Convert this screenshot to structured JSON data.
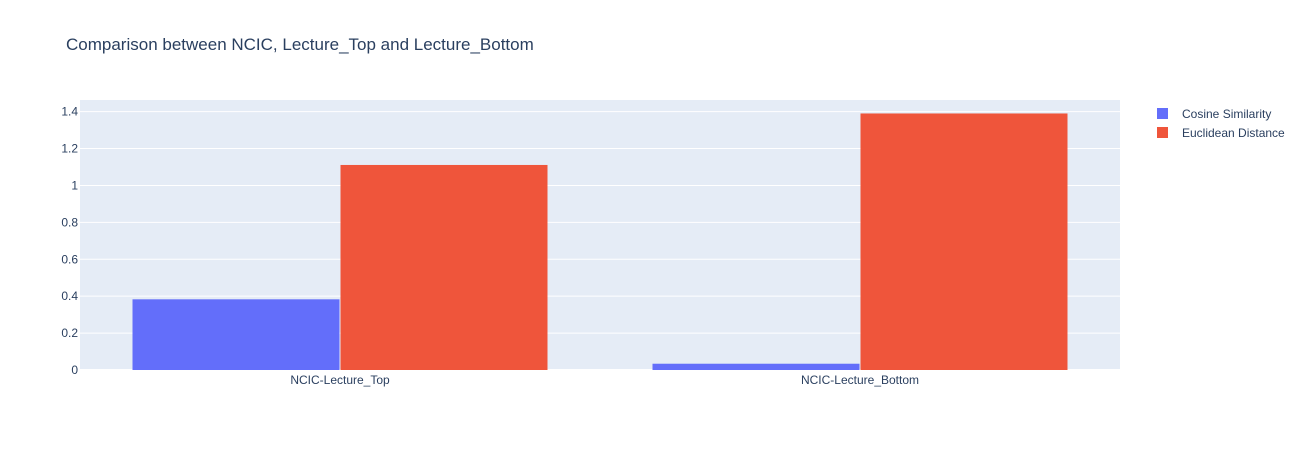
{
  "chart_data": {
    "type": "bar",
    "title": "Comparison between NCIC, Lecture_Top and Lecture_Bottom",
    "categories": [
      "NCIC-Lecture_Top",
      "NCIC-Lecture_Bottom"
    ],
    "series": [
      {
        "name": "Cosine Similarity",
        "color": "#636efa",
        "values": [
          0.383,
          0.034
        ]
      },
      {
        "name": "Euclidean Distance",
        "color": "#ef553b",
        "values": [
          1.111,
          1.39
        ]
      }
    ],
    "xlabel": "",
    "ylabel": "",
    "ylim": [
      0,
      1.463
    ],
    "yticks": [
      0,
      0.2,
      0.4,
      0.6,
      0.8,
      1,
      1.2,
      1.4
    ],
    "ytick_labels": [
      "0",
      "0.2",
      "0.4",
      "0.6",
      "0.8",
      "1",
      "1.2",
      "1.4"
    ],
    "grid": true,
    "legend": "top-right",
    "plot_background": "#e5ecf6"
  }
}
